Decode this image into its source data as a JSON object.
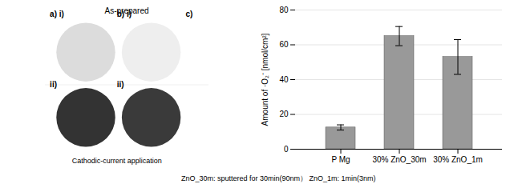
{
  "chart_data": {
    "type": "bar",
    "categories": [
      "P Mg",
      "30% ZnO_30m",
      "30% ZnO_1m"
    ],
    "values": [
      12.5,
      65.0,
      53.0
    ],
    "errors": [
      1.5,
      5.5,
      10.0
    ],
    "color": "#999999",
    "ylabel": "Amount of ·O₂⁻ [nmol/cm²]",
    "ylim": [
      0,
      80
    ],
    "yticks": [
      0,
      20,
      40,
      60,
      80
    ],
    "grid": true,
    "annotations": [
      "As-prepared",
      "a) i)",
      "b) i)",
      "ii)",
      "ii)",
      "c)",
      "Cathodic-current application",
      "ZnO_30m: sputtered for 30min(90nm）  ZnO_1m: 1min(3nm)"
    ]
  }
}
